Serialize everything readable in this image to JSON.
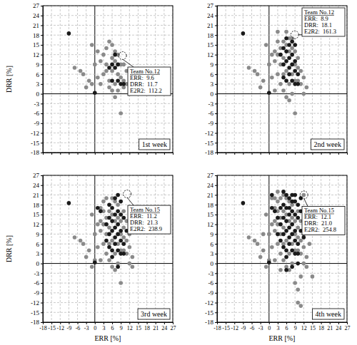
{
  "chart_data": [
    {
      "type": "scatter",
      "label": "1st week",
      "y_label": "DRR [%]",
      "tick_labels": "y",
      "xlim": [
        -18,
        27
      ],
      "ylim": [
        -18,
        27
      ],
      "xticks": [
        -18,
        -15,
        -12,
        -9,
        -6,
        -3,
        0,
        3,
        6,
        9,
        12,
        15,
        18,
        21,
        24,
        27
      ],
      "yticks": [
        -18,
        -15,
        -12,
        -9,
        -6,
        -3,
        0,
        3,
        6,
        9,
        12,
        15,
        18,
        21,
        24,
        27
      ],
      "grid": true,
      "series": [
        {
          "color": "#8a8a8a",
          "x": [
            -7,
            -5,
            -3,
            -2,
            -1,
            -1,
            1,
            2,
            3,
            4,
            4,
            5,
            5,
            6,
            6,
            6,
            7,
            7,
            7,
            8,
            8,
            8,
            9,
            9,
            10,
            10,
            11,
            12,
            5,
            3,
            0,
            2,
            6,
            9,
            11,
            4,
            -4,
            1,
            7,
            10
          ],
          "values": [
            8,
            7,
            2,
            4,
            15,
            3,
            5,
            10,
            12,
            14,
            9,
            16,
            4,
            15,
            11,
            7,
            13,
            10,
            3,
            12,
            6,
            1,
            9,
            -6,
            4,
            2,
            3,
            0,
            2,
            6,
            9,
            3,
            1,
            5,
            7,
            7,
            6,
            13,
            -1,
            9
          ]
        },
        {
          "color": "#1a1a1a",
          "x": [
            -9,
            0,
            5,
            6,
            7,
            8,
            8,
            9,
            10,
            6,
            7
          ],
          "values": [
            18.5,
            0.3,
            8,
            9,
            8,
            9,
            4,
            3,
            3,
            4,
            12
          ]
        }
      ],
      "annotation": {
        "x": 9.6,
        "y": 11.7,
        "lines": [
          "Team No.12",
          "ERR:  9.6",
          "DRR:  11.7",
          "E2R2:  112.2"
        ]
      }
    },
    {
      "type": "scatter",
      "label": "2nd week",
      "tick_labels": "y",
      "xlim": [
        -18,
        27
      ],
      "ylim": [
        -18,
        27
      ],
      "xticks": [
        -18,
        -15,
        -12,
        -9,
        -6,
        -3,
        0,
        3,
        6,
        9,
        12,
        15,
        18,
        21,
        24,
        27
      ],
      "yticks": [
        -18,
        -15,
        -12,
        -9,
        -6,
        -3,
        0,
        3,
        6,
        9,
        12,
        15,
        18,
        21,
        24,
        27
      ],
      "grid": true,
      "series": [
        {
          "color": "#8a8a8a",
          "x": [
            -7,
            -5,
            -3,
            -1,
            -2,
            1,
            2,
            2,
            3,
            3,
            4,
            4,
            4,
            5,
            5,
            5,
            6,
            6,
            6,
            7,
            7,
            7,
            8,
            8,
            8,
            9,
            9,
            9,
            10,
            10,
            11,
            11,
            12,
            12,
            3,
            0,
            2,
            6,
            9,
            -4,
            1,
            7,
            10,
            5,
            3,
            13,
            8
          ],
          "values": [
            8,
            7,
            2,
            15,
            4,
            5,
            10,
            13,
            12,
            16,
            14,
            9,
            3,
            16,
            1,
            11,
            15,
            7,
            -1,
            13,
            17,
            3,
            14,
            6,
            0,
            9,
            -6,
            4,
            4,
            11,
            3,
            7,
            0,
            5,
            6,
            9,
            1,
            19,
            13,
            6,
            12,
            -2,
            8,
            6,
            19,
            2,
            17
          ]
        },
        {
          "color": "#1a1a1a",
          "x": [
            -9,
            0,
            4,
            5,
            5,
            6,
            6,
            7,
            7,
            7,
            8,
            8,
            8,
            9,
            9,
            10,
            6,
            7,
            8,
            9,
            9,
            10,
            6,
            5
          ],
          "values": [
            18.5,
            0.3,
            12,
            9,
            14,
            10,
            13,
            8,
            11,
            15,
            9,
            4,
            12,
            3,
            7,
            3,
            4,
            6,
            16,
            10,
            15,
            6,
            17,
            5
          ]
        }
      ],
      "annotation": {
        "x": 8.9,
        "y": 18.1,
        "lines": [
          "Team No.12",
          "ERR:  8.9",
          "DRR:  18.1",
          "E2R2:  161.3"
        ]
      }
    },
    {
      "type": "scatter",
      "label": "3rd week",
      "x_label": "ERR [%]",
      "y_label": "DRR [%]",
      "xlim": [
        -18,
        27
      ],
      "ylim": [
        -18,
        27
      ],
      "xticks": [
        -18,
        -15,
        -12,
        -9,
        -6,
        -3,
        0,
        3,
        6,
        9,
        12,
        15,
        18,
        21,
        24,
        27
      ],
      "yticks": [
        -18,
        -15,
        -12,
        -9,
        -6,
        -3,
        0,
        3,
        6,
        9,
        12,
        15,
        18,
        21,
        24,
        27
      ],
      "grid": true,
      "series": [
        {
          "color": "#8a8a8a",
          "x": [
            -7,
            -5,
            -3,
            -1,
            -2,
            1,
            2,
            2,
            3,
            3,
            4,
            4,
            4,
            5,
            5,
            5,
            6,
            6,
            6,
            7,
            7,
            7,
            8,
            8,
            8,
            9,
            9,
            9,
            10,
            10,
            11,
            11,
            12,
            12,
            3,
            0,
            2,
            6,
            9,
            -4,
            1,
            7,
            10,
            5,
            3,
            13,
            8,
            4,
            10,
            11,
            12,
            2,
            0,
            -1,
            13
          ],
          "values": [
            8,
            7,
            2,
            15,
            4,
            5,
            10,
            13,
            12,
            16,
            14,
            9,
            3,
            16,
            1,
            11,
            15,
            7,
            -1,
            13,
            19,
            3,
            14,
            6,
            0,
            9,
            -6,
            4,
            4,
            11,
            3,
            7,
            0,
            5,
            6,
            9,
            1,
            20,
            13,
            6,
            12,
            -2,
            8,
            6,
            19,
            2,
            18,
            20,
            16,
            13,
            9,
            17,
            1,
            -1,
            -1
          ]
        },
        {
          "color": "#1a1a1a",
          "x": [
            -9,
            0,
            4,
            5,
            5,
            6,
            6,
            7,
            7,
            7,
            8,
            8,
            8,
            9,
            9,
            10,
            6,
            7,
            8,
            9,
            9,
            10,
            6,
            5,
            1,
            2,
            5,
            7,
            8,
            9,
            10,
            11,
            4,
            6,
            8
          ],
          "values": [
            18.5,
            0.3,
            12,
            9,
            14,
            10,
            13,
            8,
            11,
            15,
            9,
            4,
            12,
            3,
            7,
            3,
            4,
            6,
            16,
            10,
            15,
            6,
            17,
            5,
            17,
            16,
            18,
            20,
            21,
            19,
            14,
            10,
            7,
            2,
            -1
          ]
        }
      ],
      "annotation": {
        "x": 11.2,
        "y": 21.3,
        "lines": [
          "Team No.15",
          "ERR:  11.2",
          "DRR:  21.3",
          "E2R2:  238.9"
        ]
      }
    },
    {
      "type": "scatter",
      "label": "4th week",
      "x_label": "ERR [%]",
      "xlim": [
        -18,
        27
      ],
      "ylim": [
        -18,
        27
      ],
      "xticks": [
        -18,
        -15,
        -12,
        -9,
        -6,
        -3,
        0,
        3,
        6,
        9,
        12,
        15,
        18,
        21,
        24,
        27
      ],
      "yticks": [
        -18,
        -15,
        -12,
        -9,
        -6,
        -3,
        0,
        3,
        6,
        9,
        12,
        15,
        18,
        21,
        24,
        27
      ],
      "grid": true,
      "series": [
        {
          "color": "#8a8a8a",
          "x": [
            -7,
            -5,
            -3,
            -1,
            -2,
            1,
            2,
            2,
            3,
            3,
            4,
            4,
            4,
            5,
            5,
            5,
            6,
            6,
            6,
            7,
            7,
            7,
            8,
            8,
            8,
            9,
            9,
            9,
            10,
            10,
            11,
            11,
            12,
            12,
            3,
            0,
            2,
            6,
            9,
            -4,
            1,
            7,
            10,
            5,
            3,
            13,
            8,
            4,
            10,
            11,
            12,
            2,
            0,
            -1,
            13,
            2,
            3,
            12,
            13,
            14,
            11,
            10,
            10,
            11,
            15,
            4,
            5,
            14,
            1,
            -2,
            12
          ],
          "values": [
            8,
            7,
            2,
            15,
            4,
            5,
            10,
            13,
            12,
            16,
            14,
            9,
            3,
            16,
            1,
            11,
            15,
            7,
            -1,
            13,
            19,
            3,
            14,
            6,
            0,
            9,
            -6,
            4,
            4,
            11,
            3,
            7,
            0,
            5,
            6,
            9,
            1,
            20,
            13,
            6,
            12,
            -2,
            8,
            6,
            19,
            2,
            18,
            20,
            16,
            13,
            9,
            17,
            1,
            -1,
            -1,
            20,
            22,
            12,
            16,
            6,
            -4,
            -8,
            -12,
            -13,
            -4,
            -2,
            21,
            10,
            20,
            9,
            21
          ]
        },
        {
          "color": "#1a1a1a",
          "x": [
            -9,
            0,
            4,
            5,
            5,
            6,
            6,
            7,
            7,
            7,
            8,
            8,
            8,
            9,
            9,
            10,
            6,
            7,
            8,
            9,
            9,
            10,
            6,
            5,
            1,
            2,
            5,
            7,
            8,
            9,
            10,
            11,
            4,
            6,
            8,
            1,
            3,
            4,
            5,
            6,
            7,
            8,
            9,
            10,
            11,
            11,
            12,
            3,
            6,
            10,
            12
          ],
          "values": [
            18.5,
            0.3,
            12,
            9,
            14,
            10,
            13,
            8,
            11,
            15,
            9,
            4,
            12,
            3,
            7,
            3,
            4,
            6,
            16,
            10,
            15,
            6,
            17,
            5,
            17,
            16,
            18,
            20,
            21,
            19,
            14,
            10,
            7,
            2,
            -1,
            21,
            14,
            17,
            22,
            21,
            17,
            19,
            21,
            18,
            16,
            20,
            8,
            9,
            -2,
            0,
            13
          ]
        }
      ],
      "annotation": {
        "x": 12.1,
        "y": 21.0,
        "lines": [
          "Team No.15",
          "ERR:  12.1",
          "DRR:  21.0",
          "E2R2:  254.8"
        ]
      }
    }
  ]
}
